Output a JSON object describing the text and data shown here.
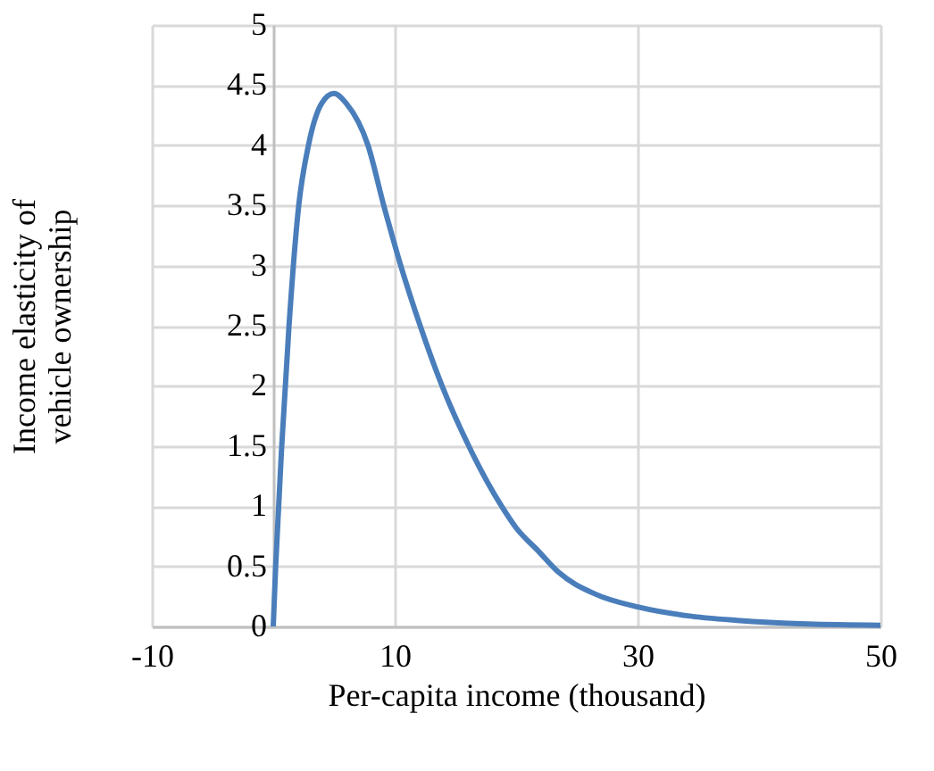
{
  "chart_data": {
    "type": "line",
    "xlabel": "Per-capita income (thousand)",
    "ylabel": "Income elasticity of vehicle ownership",
    "x": [
      0,
      0.2,
      0.7,
      1.3,
      2.1,
      2.9,
      4.0,
      5.0,
      6.0,
      7.8,
      9.1,
      10.5,
      12.1,
      13.9,
      16.1,
      18.8,
      20,
      21.8,
      23.5,
      26.5,
      30.1,
      34,
      38.2,
      44,
      50
    ],
    "series": [
      {
        "color": "#4a7ebb",
        "values": [
          0,
          0.5,
          1.5,
          2.5,
          3.5,
          4.0,
          4.35,
          4.43,
          4.35,
          4.0,
          3.5,
          3.0,
          2.5,
          2.0,
          1.5,
          1.0,
          0.82,
          0.63,
          0.45,
          0.27,
          0.16,
          0.09,
          0.05,
          0.02,
          0.01
        ]
      }
    ],
    "xlim": [
      -10,
      50
    ],
    "xticks": [
      -10,
      10,
      30,
      50
    ],
    "ylim": [
      0,
      5
    ],
    "yticks": [
      0,
      0.5,
      1,
      1.5,
      2,
      2.5,
      3,
      3.5,
      4,
      4.5,
      5
    ],
    "grid": true,
    "legend": false
  }
}
